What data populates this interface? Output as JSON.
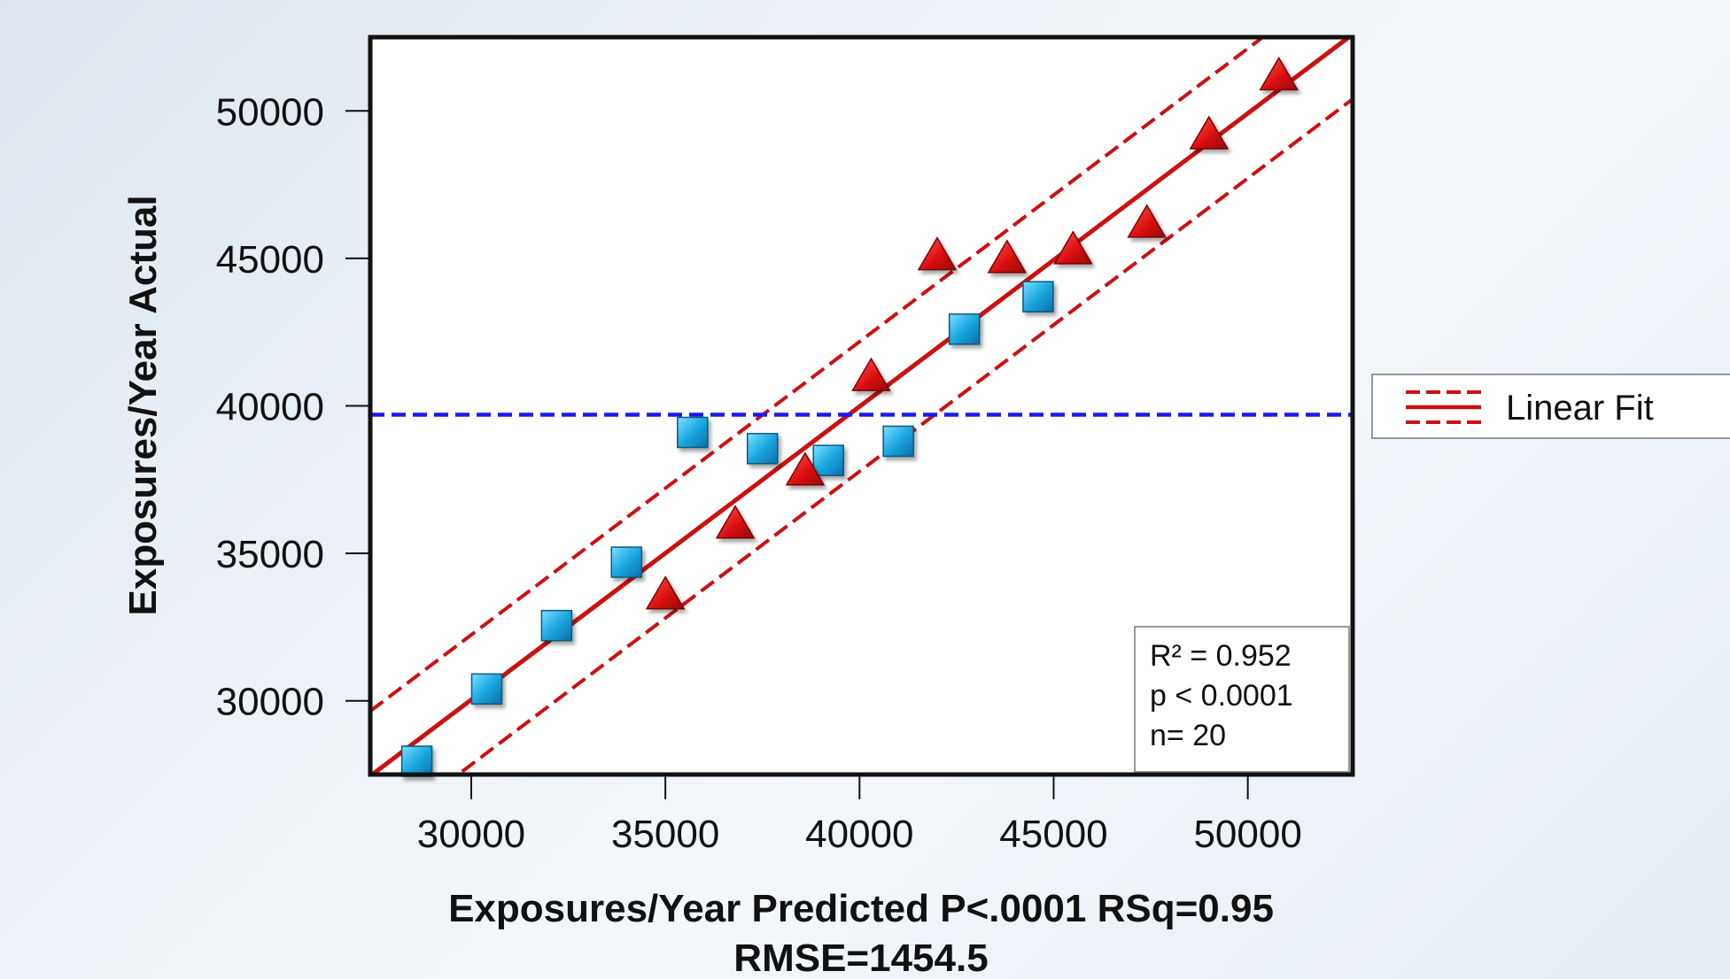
{
  "chart_data": {
    "type": "scatter",
    "xlabel": "Exposures/Year Predicted P<.0001 RSq=0.95",
    "xlabel_line2": "RMSE=1454.5",
    "ylabel": "Exposures/Year Actual",
    "xlim": [
      27400,
      52700
    ],
    "ylim": [
      27500,
      52500
    ],
    "x_ticks": [
      "30000",
      "35000",
      "40000",
      "45000",
      "50000"
    ],
    "y_ticks": [
      "30000",
      "35000",
      "40000",
      "45000",
      "50000"
    ],
    "grid": false,
    "mean_line": {
      "y": 39700,
      "color": "#1a1aee",
      "style": "dashed"
    },
    "fit": {
      "color": "#cc1010",
      "line": [
        [
          27400,
          27450
        ],
        [
          52700,
          52600
        ]
      ],
      "upper": [
        [
          27400,
          29650
        ],
        [
          52700,
          54800
        ]
      ],
      "lower": [
        [
          27400,
          25250
        ],
        [
          52700,
          50400
        ]
      ]
    },
    "legend": {
      "label": "Linear Fit",
      "position": "right"
    },
    "stats": {
      "r2": "R² = 0.952",
      "p": "p < 0.0001",
      "n": "n= 20"
    },
    "series": [
      {
        "marker": "square",
        "color": "#1ba8e0",
        "points": [
          [
            28600,
            27950
          ],
          [
            30400,
            30400
          ],
          [
            32200,
            32550
          ],
          [
            34000,
            34700
          ],
          [
            35700,
            39100
          ],
          [
            37500,
            38550
          ],
          [
            39200,
            38150
          ],
          [
            41000,
            38800
          ],
          [
            42700,
            42600
          ],
          [
            44600,
            43700
          ]
        ]
      },
      {
        "marker": "triangle",
        "color": "#dd1111",
        "points": [
          [
            35000,
            33600
          ],
          [
            36800,
            36000
          ],
          [
            38600,
            37800
          ],
          [
            40300,
            41000
          ],
          [
            42000,
            45100
          ],
          [
            43800,
            45000
          ],
          [
            45500,
            45300
          ],
          [
            47400,
            46200
          ],
          [
            49000,
            49200
          ],
          [
            50800,
            51200
          ]
        ]
      }
    ]
  }
}
